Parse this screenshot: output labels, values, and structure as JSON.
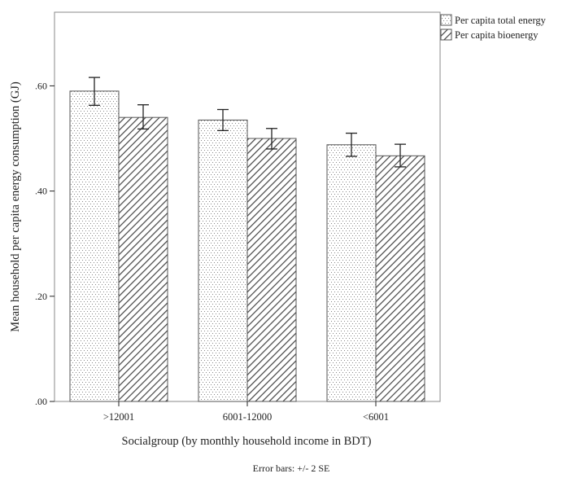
{
  "chart_data": {
    "type": "bar",
    "title": "",
    "xlabel": "Socialgroup (by monthly household income in BDT)",
    "ylabel": "Mean household per capita energy consumption (GJ)",
    "ylim": [
      0,
      0.74
    ],
    "yticks": [
      0.0,
      0.2,
      0.4,
      0.6
    ],
    "ytick_labels": [
      ".00",
      ".20",
      ".40",
      ".60"
    ],
    "categories": [
      ">12001",
      "6001-12000",
      "<6001"
    ],
    "series": [
      {
        "name": "Per capita total energy",
        "pattern": "dots",
        "values": [
          0.59,
          0.535,
          0.488
        ],
        "err_low": [
          0.563,
          0.515,
          0.466
        ],
        "err_high": [
          0.616,
          0.555,
          0.51
        ]
      },
      {
        "name": "Per capita bioenergy",
        "pattern": "hatch",
        "values": [
          0.54,
          0.5,
          0.467
        ],
        "err_low": [
          0.518,
          0.48,
          0.446
        ],
        "err_high": [
          0.564,
          0.519,
          0.489
        ]
      }
    ],
    "legend_position": "top-right",
    "grid": false,
    "footnote": "Error bars: +/- 2 SE",
    "colors": {
      "bar_fill": "#ffffff",
      "bar_outline": "#555555",
      "dot_color": "#888888",
      "hatch_color": "#444444",
      "axis_color": "#888888",
      "error_bar_color": "#222222"
    }
  }
}
